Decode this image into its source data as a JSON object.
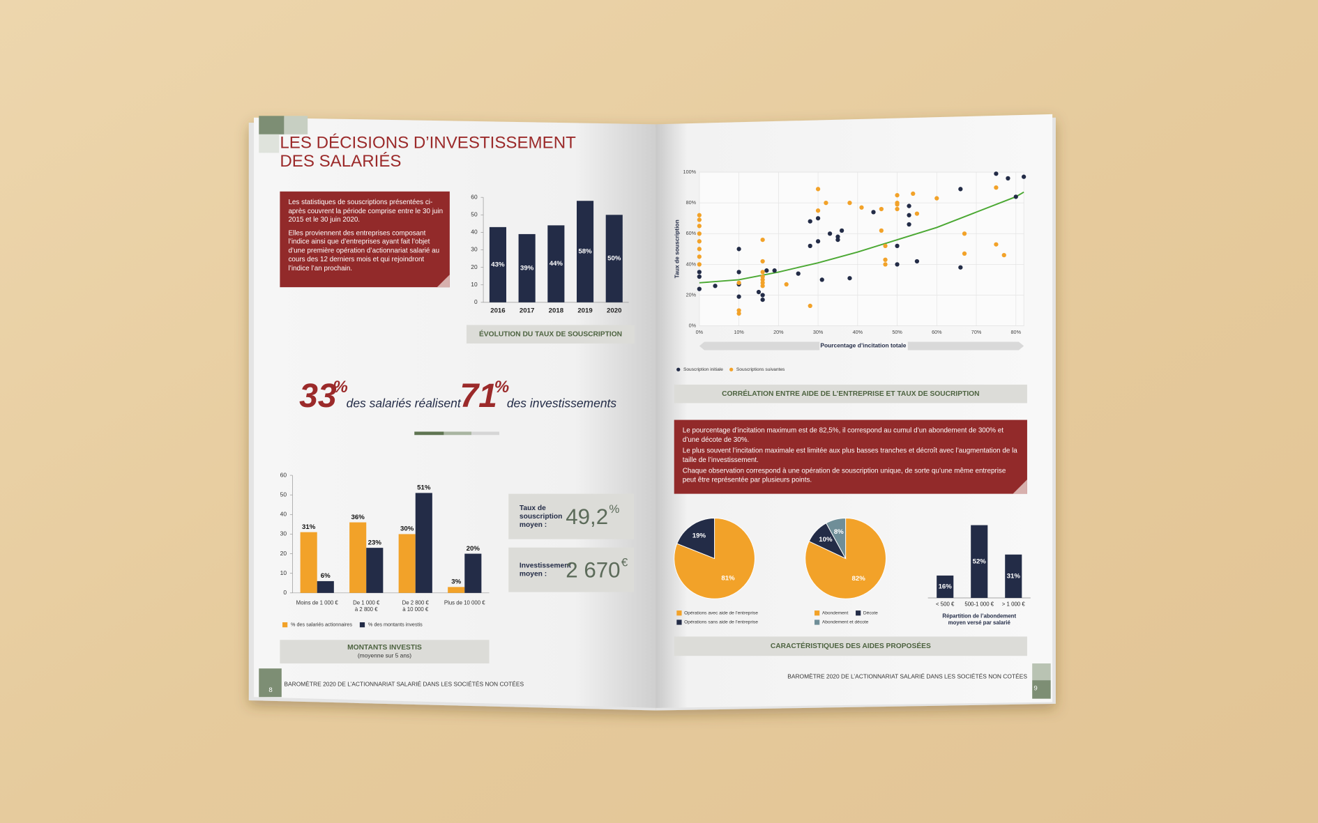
{
  "document": {
    "left_page": {
      "title_lines": [
        "LES DÉCISIONS D’INVESTISSEMENT",
        "DES SALARIÉS"
      ],
      "intro": [
        "Les statistiques de souscriptions présentées ci-après couvrent la période comprise entre le 30 juin 2015 et le 30 juin 2020.",
        "Elles proviennent des entreprises composant l’indice ainsi que d’entreprises ayant fait l’objet d’une première opération d’actionnariat salarié au cours des 12 derniers mois et qui rejoindront l’indice l’an prochain."
      ],
      "headline": {
        "number_1": "33",
        "unit_1": "%",
        "text_1": "des salariés réalisent",
        "number_2": "71",
        "unit_2": "%",
        "text_2": "des investissements"
      },
      "kpis": [
        {
          "label_lines": [
            "Taux de",
            "souscription",
            "moyen :"
          ],
          "value": "49,2",
          "unit": "%"
        },
        {
          "label_lines": [
            "Investissement",
            "moyen :"
          ],
          "value": "2 670",
          "unit": "€"
        }
      ],
      "footer": "BAROMÈTRE 2020 DE L’ACTIONNARIAT SALARIÉ DANS LES SOCIÉTÉS NON COTÉES",
      "page_number": "8"
    },
    "right_page": {
      "note": [
        "Le pourcentage d’incitation maximum est de 82,5%, il correspond au cumul d’un abondement de 300% et d’une décote de 30%.",
        "Le plus souvent l’incitation maximale est limitée aux plus basses tranches et décroît avec l’augmentation de la taille de l’investissement.",
        "Chaque observation correspond à une opération de souscription unique, de sorte qu’une même entreprise peut être représentée par plusieurs points."
      ],
      "footer": "BAROMÈTRE 2020 DE L’ACTIONNARIAT SALARIÉ DANS LES SOCIÉTÉS NON COTÉES",
      "page_number": "9"
    }
  },
  "chart_data": [
    {
      "type": "bar",
      "title": "ÉVOLUTION DU TAUX DE SOUSCRIPTION",
      "categories": [
        "2016",
        "2017",
        "2018",
        "2019",
        "2020"
      ],
      "values": [
        43,
        39,
        44,
        58,
        50
      ],
      "value_labels": [
        "43%",
        "39%",
        "44%",
        "58%",
        "50%"
      ],
      "color": "#232c47",
      "ylim": [
        0,
        60
      ],
      "yticks": [
        0,
        10,
        20,
        30,
        40,
        50,
        60
      ]
    },
    {
      "type": "bar",
      "title": "MONTANTS INVESTIS",
      "subtitle": "(moyenne sur 5 ans)",
      "categories": [
        [
          "Moins de 1 000 €"
        ],
        [
          "De 1 000 €",
          "à 2 800 €"
        ],
        [
          "De 2 800 €",
          "à 10 000 €"
        ],
        [
          "Plus de 10 000 €"
        ]
      ],
      "series": [
        {
          "name": "% des salariés actionnaires",
          "color": "#f2a229",
          "values": [
            31,
            36,
            30,
            3
          ],
          "value_labels": [
            "31%",
            "36%",
            "30%",
            "3%"
          ]
        },
        {
          "name": "% des montants investis",
          "color": "#232c47",
          "values": [
            6,
            23,
            51,
            20
          ],
          "value_labels": [
            "6%",
            "23%",
            "51%",
            "20%"
          ]
        }
      ],
      "ylim": [
        0,
        60
      ],
      "yticks": [
        0,
        10,
        20,
        30,
        40,
        50,
        60
      ],
      "legend": "bottom"
    },
    {
      "type": "scatter",
      "title": "CORRÉLATION ENTRE AIDE DE L’ENTREPRISE ET TAUX DE SOUCRIPTION",
      "xlabel": "Pourcentage d’incitation totale",
      "ylabel": "Taux de souscription",
      "xlim": [
        0,
        82
      ],
      "ylim": [
        0,
        100
      ],
      "grid": true,
      "legend": "bottom",
      "xticks": [
        {
          "value": 0,
          "label": "0%"
        },
        {
          "value": 10,
          "label": "10%"
        },
        {
          "value": 20,
          "label": "20%"
        },
        {
          "value": 30,
          "label": "30%"
        },
        {
          "value": 40,
          "label": "40%"
        },
        {
          "value": 50,
          "label": "50%"
        },
        {
          "value": 60,
          "label": "60%"
        },
        {
          "value": 70,
          "label": "70%"
        },
        {
          "value": 80,
          "label": "80%"
        }
      ],
      "yticks": [
        {
          "value": 0,
          "label": "0%"
        },
        {
          "value": 20,
          "label": "20%"
        },
        {
          "value": 40,
          "label": "40%"
        },
        {
          "value": 60,
          "label": "60%"
        },
        {
          "value": 80,
          "label": "80%"
        },
        {
          "value": 100,
          "label": "100%"
        }
      ],
      "series": [
        {
          "name": "Souscription initiale",
          "color": "#232c47",
          "x": [
            0,
            0,
            0,
            4,
            10,
            10,
            10,
            10,
            15,
            16,
            16,
            17,
            19,
            25,
            28,
            28,
            30,
            30,
            31,
            33,
            35,
            35,
            36,
            38,
            44,
            50,
            50,
            53,
            53,
            53,
            55,
            66,
            66,
            75,
            78,
            80,
            82
          ],
          "values": [
            24,
            32,
            35,
            26,
            50,
            35,
            27,
            19,
            22,
            20,
            17,
            36,
            36,
            34,
            52,
            68,
            70,
            55,
            30,
            60,
            58,
            56,
            62,
            31,
            74,
            52,
            40,
            78,
            72,
            66,
            42,
            89,
            38,
            99,
            96,
            84,
            97
          ]
        },
        {
          "name": "Souscriptions suivantes",
          "color": "#f2a229",
          "x": [
            0,
            0,
            0,
            0,
            0,
            0,
            0,
            0,
            10,
            10,
            10,
            16,
            16,
            16,
            16,
            16,
            16,
            16,
            22,
            28,
            30,
            30,
            32,
            38,
            41,
            46,
            46,
            47,
            47,
            47,
            50,
            50,
            50,
            50,
            54,
            55,
            60,
            67,
            67,
            75,
            75,
            77
          ],
          "values": [
            72,
            69,
            65,
            60,
            55,
            50,
            45,
            40,
            28,
            10,
            8,
            56,
            42,
            35,
            32,
            30,
            28,
            26,
            27,
            13,
            89,
            75,
            80,
            80,
            77,
            76,
            62,
            52,
            43,
            40,
            85,
            80,
            79,
            76,
            86,
            73,
            83,
            60,
            47,
            90,
            53,
            46
          ]
        }
      ],
      "trend": {
        "color": "#4aa832",
        "x": [
          0,
          10,
          20,
          30,
          40,
          50,
          60,
          70,
          80,
          82
        ],
        "values": [
          28,
          30,
          35,
          41,
          48,
          56,
          64,
          74,
          84,
          87
        ]
      }
    },
    {
      "type": "pie",
      "title": "CARACTÉRISTIQUES DES AIDES PROPOSÉES",
      "categories": [
        "Opérations avec aide de l’entreprise",
        "Opérations sans aide de l’entreprise"
      ],
      "values": [
        81,
        19
      ],
      "value_labels": [
        "81%",
        "19%"
      ],
      "colors": [
        "#f2a229",
        "#232c47"
      ]
    },
    {
      "type": "pie",
      "categories": [
        "Abondement",
        "Décote",
        "Abondement et décote"
      ],
      "values": [
        82,
        10,
        8
      ],
      "value_labels": [
        "82%",
        "10%",
        "8%"
      ],
      "colors": [
        "#f2a229",
        "#232c47",
        "#6f8e98"
      ]
    },
    {
      "type": "bar",
      "title_lines": [
        "Répartition de l’abondement",
        "moyen versé par salarié"
      ],
      "categories": [
        "< 500 €",
        "500-1 000 €",
        "> 1 000 €"
      ],
      "values": [
        16,
        52,
        31
      ],
      "value_labels": [
        "16%",
        "52%",
        "31%"
      ],
      "color": "#232c47",
      "ylim": [
        0,
        60
      ]
    }
  ]
}
